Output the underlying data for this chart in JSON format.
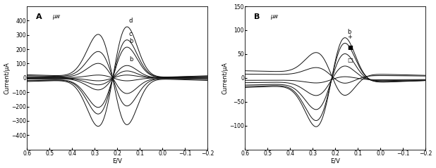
{
  "panel_A": {
    "label": "A",
    "sublabel": "μw",
    "xlabel": "E/V",
    "ylabel": "Current/μA",
    "xlim": [
      0.6,
      -0.2
    ],
    "ylim": [
      -500,
      500
    ],
    "yticks": [
      -400,
      -300,
      -200,
      -100,
      0,
      100,
      200,
      300,
      400
    ],
    "xticks": [
      0.6,
      0.5,
      0.4,
      0.3,
      0.2,
      0.1,
      0.0,
      -0.1,
      -0.2
    ]
  },
  "panel_B": {
    "label": "B",
    "sublabel": "μw",
    "xlabel": "E/V",
    "ylabel": "Current/μA",
    "xlim": [
      0.6,
      -0.2
    ],
    "ylim": [
      -150,
      150
    ],
    "yticks": [
      -100,
      -50,
      0,
      50,
      100,
      150
    ],
    "xticks": [
      0.6,
      0.5,
      0.4,
      0.3,
      0.2,
      0.1,
      0.0,
      -0.1,
      -0.2
    ]
  },
  "background": "#ffffff",
  "line_color": "#111111",
  "fontsize_label": 6,
  "fontsize_tick": 5.5,
  "fontsize_panel": 8
}
